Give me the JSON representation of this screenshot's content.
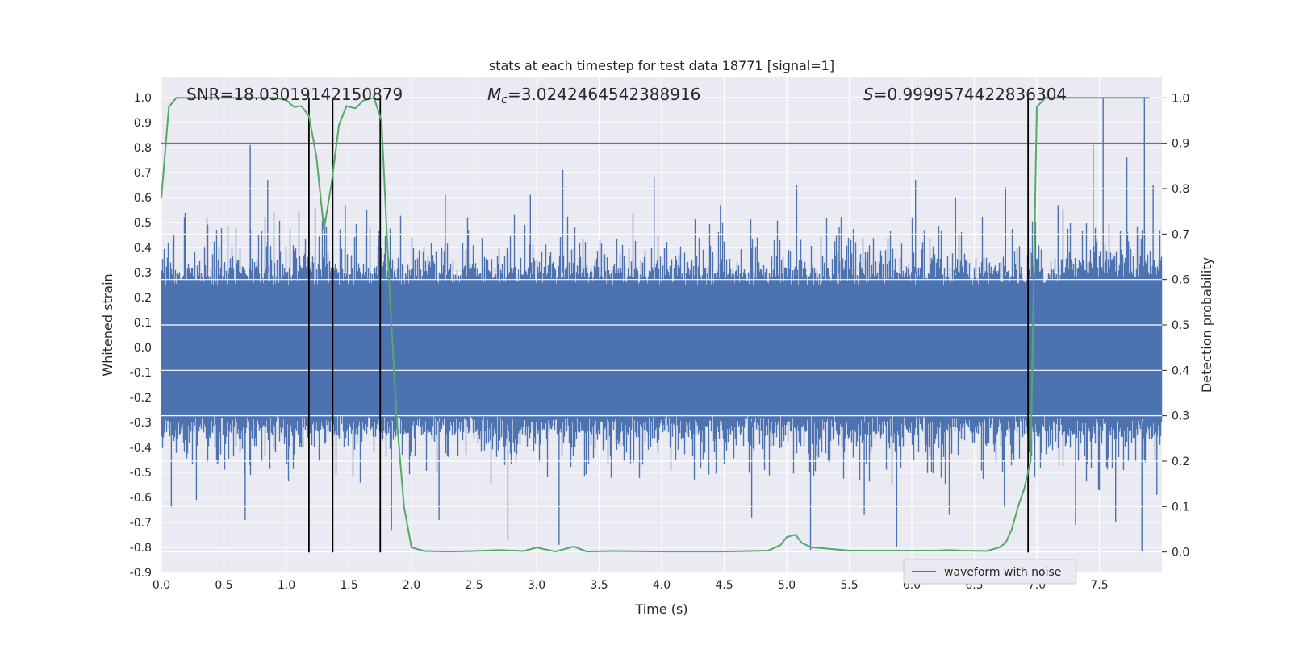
{
  "chart_data": {
    "type": "line",
    "title": "stats at each timestep for test data 18771 [signal=1]",
    "xlabel": "Time (s)",
    "ylabel": "Whitened strain",
    "y2label": "Detection probability",
    "xlim": [
      0.0,
      8.0
    ],
    "ylim": [
      -0.9,
      1.08
    ],
    "y2lim": [
      -0.045,
      1.045
    ],
    "xticks": [
      0.0,
      0.5,
      1.0,
      1.5,
      2.0,
      2.5,
      3.0,
      3.5,
      4.0,
      4.5,
      5.0,
      5.5,
      6.0,
      6.5,
      7.0,
      7.5
    ],
    "yticks": [
      -0.9,
      -0.8,
      -0.7,
      -0.6,
      -0.5,
      -0.4,
      -0.3,
      -0.2,
      -0.1,
      0.0,
      0.1,
      0.2,
      0.3,
      0.4,
      0.5,
      0.6,
      0.7,
      0.8,
      0.9,
      1.0
    ],
    "y2ticks": [
      0.0,
      0.1,
      0.2,
      0.3,
      0.4,
      0.5,
      0.6,
      0.7,
      0.8,
      0.9,
      1.0
    ],
    "grid": true,
    "legend_placement": "lower-right",
    "annotations": [
      {
        "text": "SNR=18.03019142150879",
        "x": 0.2,
        "y": 1.0
      },
      {
        "math_symbol": "M",
        "math_sub": "c",
        "text": "=3.0242464542388916",
        "x": 2.6,
        "y": 1.0
      },
      {
        "math_symbol": "S",
        "text": "=0.9999574422836304",
        "x": 5.6,
        "y": 1.0
      }
    ],
    "threshold": {
      "axis": "y2",
      "value": 0.9,
      "color": "#c44e52"
    },
    "vlines": [
      1.18,
      1.37,
      1.75,
      6.93
    ],
    "vline_range": [
      -0.82,
      1.0
    ],
    "series": [
      {
        "name": "waveform with noise",
        "axis": "y",
        "color": "#4c72b0",
        "style": "dense noise band",
        "duration_s": 8.0,
        "envelope": {
          "typical_pos": 0.32,
          "typical_neg": -0.35
        },
        "peaks": [
          [
            0.71,
            0.81
          ],
          [
            0.85,
            0.67
          ],
          [
            1.23,
            0.56
          ],
          [
            1.47,
            0.57
          ],
          [
            2.27,
            0.61
          ],
          [
            2.95,
            0.61
          ],
          [
            3.21,
            0.71
          ],
          [
            3.94,
            0.68
          ],
          [
            4.47,
            0.57
          ],
          [
            5.08,
            0.65
          ],
          [
            5.42,
            0.48
          ],
          [
            6.03,
            0.67
          ],
          [
            6.35,
            0.6
          ],
          [
            6.75,
            0.64
          ],
          [
            7.17,
            0.57
          ],
          [
            7.45,
            0.81
          ],
          [
            7.53,
            1.0
          ],
          [
            7.72,
            0.76
          ],
          [
            7.86,
            1.0
          ],
          [
            7.93,
            0.65
          ]
        ],
        "troughs": [
          [
            0.08,
            -0.64
          ],
          [
            0.28,
            -0.61
          ],
          [
            0.67,
            -0.69
          ],
          [
            1.84,
            -0.73
          ],
          [
            2.22,
            -0.69
          ],
          [
            2.77,
            -0.77
          ],
          [
            3.18,
            -0.79
          ],
          [
            4.72,
            -0.68
          ],
          [
            5.19,
            -0.81
          ],
          [
            5.62,
            -0.67
          ],
          [
            5.88,
            -0.8
          ],
          [
            6.3,
            -0.67
          ],
          [
            6.74,
            -0.64
          ],
          [
            7.31,
            -0.71
          ],
          [
            7.63,
            -0.7
          ],
          [
            7.84,
            -0.82
          ],
          [
            7.96,
            -0.59
          ]
        ]
      },
      {
        "name": "",
        "axis": "y2",
        "color": "#55a868",
        "x": [
          0.0,
          0.06,
          0.12,
          0.2,
          0.3,
          0.5,
          0.7,
          0.9,
          1.0,
          1.06,
          1.12,
          1.18,
          1.24,
          1.3,
          1.36,
          1.42,
          1.48,
          1.55,
          1.62,
          1.7,
          1.76,
          1.82,
          1.88,
          1.94,
          2.0,
          2.1,
          2.3,
          2.5,
          2.7,
          2.8,
          2.9,
          3.0,
          3.15,
          3.3,
          3.4,
          3.6,
          4.0,
          4.5,
          4.85,
          4.95,
          5.0,
          5.07,
          5.12,
          5.2,
          5.3,
          5.5,
          6.0,
          6.2,
          6.3,
          6.4,
          6.6,
          6.7,
          6.75,
          6.8,
          6.85,
          6.9,
          6.95,
          7.0,
          7.07,
          7.2,
          7.5,
          7.9
        ],
        "y": [
          0.78,
          0.98,
          1.0,
          1.0,
          1.0,
          1.0,
          1.0,
          1.0,
          0.995,
          0.98,
          0.982,
          0.96,
          0.87,
          0.71,
          0.81,
          0.94,
          0.982,
          0.977,
          0.995,
          1.0,
          0.95,
          0.6,
          0.3,
          0.1,
          0.01,
          0.002,
          0.001,
          0.002,
          0.004,
          0.003,
          0.002,
          0.01,
          0.001,
          0.012,
          0.001,
          0.002,
          0.001,
          0.001,
          0.003,
          0.015,
          0.033,
          0.038,
          0.02,
          0.01,
          0.008,
          0.003,
          0.003,
          0.003,
          0.004,
          0.003,
          0.002,
          0.01,
          0.02,
          0.05,
          0.1,
          0.14,
          0.2,
          0.98,
          1.0,
          1.0,
          1.0,
          1.0
        ]
      }
    ]
  }
}
